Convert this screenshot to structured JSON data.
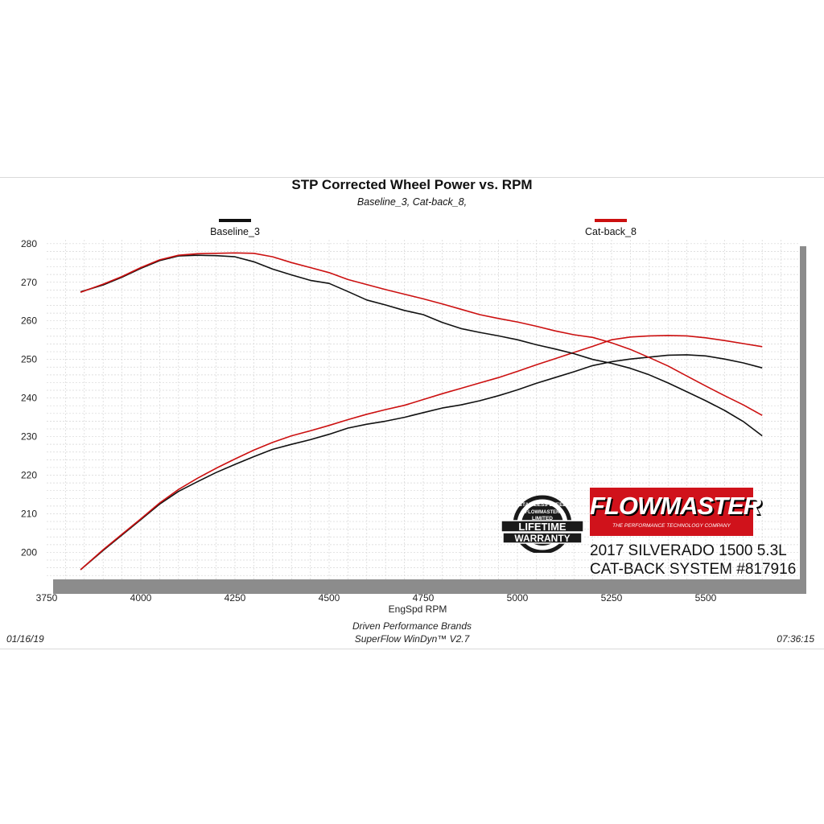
{
  "chart_data": {
    "type": "line",
    "title": "STP Corrected Wheel Power vs. RPM",
    "subtitle": "Baseline_3, Cat-back_8,",
    "xlabel": "EngSpd  RPM",
    "ylabel": "",
    "xlim": [
      3750,
      5750
    ],
    "ylim": [
      193,
      281
    ],
    "x_ticks": [
      "3750",
      "4000",
      "4250",
      "4500",
      "4750",
      "5000",
      "5250",
      "5500"
    ],
    "y_ticks": [
      "200",
      "210",
      "220",
      "230",
      "240",
      "250",
      "260",
      "270",
      "280"
    ],
    "grid": true,
    "legend": "top",
    "series": [
      {
        "name": "Baseline_3",
        "metric": "power",
        "color": "#111111",
        "x": [
          3840,
          3900,
          3950,
          4000,
          4050,
          4100,
          4150,
          4200,
          4250,
          4300,
          4350,
          4400,
          4450,
          4500,
          4550,
          4600,
          4650,
          4700,
          4750,
          4800,
          4850,
          4900,
          4950,
          5000,
          5050,
          5100,
          5150,
          5200,
          5250,
          5300,
          5350,
          5400,
          5450,
          5500,
          5550,
          5600,
          5650
        ],
        "y": [
          195.5,
          200.5,
          204.5,
          208.5,
          212.5,
          215.8,
          218.3,
          220.7,
          222.8,
          224.8,
          226.7,
          228.0,
          229.2,
          230.6,
          232.2,
          233.2,
          234.0,
          235.0,
          236.2,
          237.4,
          238.2,
          239.3,
          240.6,
          242.1,
          243.8,
          245.3,
          246.8,
          248.4,
          249.4,
          250.1,
          250.6,
          251.1,
          251.2,
          250.9,
          250.1,
          249.1,
          247.8
        ]
      },
      {
        "name": "Cat-back_8",
        "metric": "power",
        "color": "#cc1010",
        "x": [
          3840,
          3900,
          3950,
          4000,
          4050,
          4100,
          4150,
          4200,
          4250,
          4300,
          4350,
          4400,
          4450,
          4500,
          4550,
          4600,
          4650,
          4700,
          4750,
          4800,
          4850,
          4900,
          4950,
          5000,
          5050,
          5100,
          5150,
          5200,
          5250,
          5300,
          5350,
          5400,
          5450,
          5500,
          5550,
          5600,
          5650
        ],
        "y": [
          195.5,
          200.7,
          204.7,
          208.7,
          212.8,
          216.3,
          219.2,
          221.8,
          224.2,
          226.5,
          228.5,
          230.2,
          231.5,
          232.9,
          234.4,
          235.8,
          237.0,
          238.1,
          239.6,
          241.1,
          242.5,
          243.9,
          245.3,
          246.9,
          248.6,
          250.2,
          251.8,
          253.4,
          255.1,
          255.8,
          256.1,
          256.2,
          256.1,
          255.6,
          254.9,
          254.1,
          253.3
        ]
      },
      {
        "name": "Baseline_3",
        "metric": "torque",
        "color": "#111111",
        "x": [
          3840,
          3900,
          3950,
          4000,
          4050,
          4100,
          4150,
          4200,
          4250,
          4300,
          4350,
          4400,
          4450,
          4500,
          4550,
          4600,
          4650,
          4700,
          4750,
          4800,
          4850,
          4900,
          4950,
          5000,
          5050,
          5100,
          5150,
          5200,
          5250,
          5300,
          5350,
          5400,
          5450,
          5500,
          5550,
          5600,
          5650
        ],
        "y": [
          267.5,
          269.3,
          271.3,
          273.6,
          275.6,
          276.8,
          277.0,
          276.9,
          276.6,
          275.3,
          273.4,
          271.9,
          270.5,
          269.7,
          267.6,
          265.4,
          264.1,
          262.7,
          261.6,
          259.6,
          258.0,
          257.0,
          256.1,
          255.1,
          253.8,
          252.7,
          251.5,
          250.0,
          249.0,
          247.7,
          246.0,
          243.9,
          241.6,
          239.3,
          236.8,
          233.9,
          230.2
        ]
      },
      {
        "name": "Cat-back_8",
        "metric": "torque",
        "color": "#cc1010",
        "x": [
          3840,
          3900,
          3950,
          4000,
          4050,
          4100,
          4150,
          4200,
          4250,
          4300,
          4350,
          4400,
          4450,
          4500,
          4550,
          4600,
          4650,
          4700,
          4750,
          4800,
          4850,
          4900,
          4950,
          5000,
          5050,
          5100,
          5150,
          5200,
          5250,
          5300,
          5350,
          5400,
          5450,
          5500,
          5550,
          5600,
          5650
        ],
        "y": [
          267.4,
          269.5,
          271.5,
          273.8,
          275.8,
          277.0,
          277.4,
          277.5,
          277.6,
          277.5,
          276.6,
          275.1,
          273.8,
          272.5,
          270.7,
          269.4,
          268.1,
          266.9,
          265.7,
          264.4,
          263.0,
          261.6,
          260.6,
          259.7,
          258.6,
          257.4,
          256.4,
          255.7,
          254.3,
          252.6,
          250.5,
          248.3,
          245.7,
          243.1,
          240.6,
          238.2,
          235.5
        ]
      }
    ]
  },
  "footer": {
    "company": "Driven Performance Brands",
    "software": "SuperFlow WinDyn™  V2.7",
    "date": "01/16/19",
    "time": "07:36:15"
  },
  "overlay": {
    "brand": "FLOWMASTER",
    "brand_tagline": "THE PERFORMANCE TECHNOLOGY COMPANY",
    "badge_top": "STAINLESS STEEL",
    "badge_brand": "FLOWMASTER",
    "badge_limited": "LIMITED",
    "badge_line1": "LIFETIME",
    "badge_line2": "WARRANTY",
    "caption_line1": "2017 SILVERADO 1500 5.3L",
    "caption_line2": "CAT-BACK SYSTEM #817916"
  },
  "colors": {
    "baseline": "#111111",
    "catback": "#cc1010",
    "brand_red": "#d0121b",
    "plot_shadow": "#8c8c8c"
  }
}
